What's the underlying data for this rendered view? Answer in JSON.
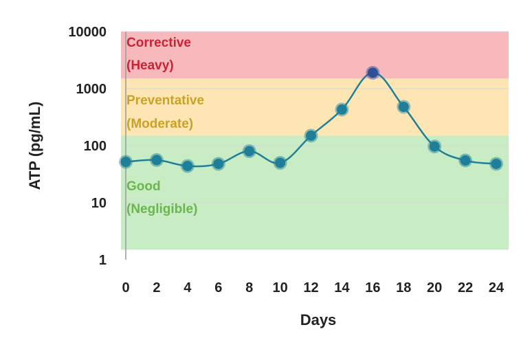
{
  "chart_data": {
    "type": "line",
    "title": "",
    "xlabel": "Days",
    "ylabel": "ATP (pg/mL)",
    "yscale": "log",
    "ylim": [
      1,
      10000
    ],
    "xlim": [
      0,
      24
    ],
    "x_ticks": [
      "0",
      "2",
      "4",
      "6",
      "8",
      "10",
      "12",
      "14",
      "16",
      "18",
      "20",
      "22",
      "24"
    ],
    "y_ticks": [
      "1",
      "10",
      "100",
      "1000",
      "10000"
    ],
    "grid": "horizontal",
    "series": [
      {
        "x": [
          0,
          2,
          4,
          6,
          8,
          10,
          12,
          14,
          16,
          18,
          20,
          22,
          24
        ],
        "values": [
          52,
          56,
          44,
          48,
          80,
          50,
          150,
          430,
          1900,
          480,
          97,
          55,
          48
        ],
        "color": "#1f7f99",
        "peak_color": "#2e5096"
      }
    ],
    "zones": [
      {
        "line1": "Corrective",
        "line2": "(Heavy)",
        "from": 1500,
        "to": 10000,
        "color": "#f7b9bc"
      },
      {
        "line1": "Preventative",
        "line2": "(Moderate)",
        "from": 150,
        "to": 1500,
        "color": "#fde6b4"
      },
      {
        "line1": "Good",
        "line2": "(Negligible)",
        "from": 1.5,
        "to": 150,
        "color": "#c8ecc3"
      }
    ]
  }
}
